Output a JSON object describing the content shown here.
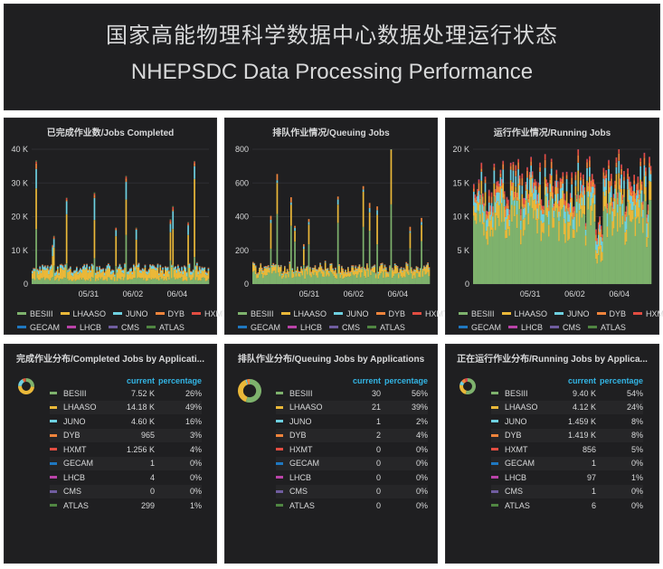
{
  "header": {
    "title_cn": "国家高能物理科学数据中心数据处理运行状态",
    "title_en": "NHEPSDC Data Processing Performance"
  },
  "series_colors": {
    "BESIII": "#7eb26d",
    "LHAASO": "#eab839",
    "JUNO": "#6ed0e0",
    "DYB": "#ef843c",
    "HXMT": "#e24d42",
    "GECAM": "#1f78c1",
    "LHCB": "#ba43a9",
    "CMS": "#705da0",
    "ATLAS": "#508642"
  },
  "legend_rows": [
    [
      "BESIII",
      "LHAASO",
      "JUNO",
      "DYB",
      "HXMT"
    ],
    [
      "GECAM",
      "LHCB",
      "CMS",
      "ATLAS"
    ]
  ],
  "chart_data": [
    {
      "type": "bar",
      "title": "已完成作业数/Jobs Completed",
      "y_ticks": [
        "40 K",
        "30 K",
        "20 K",
        "10 K",
        "0"
      ],
      "x_ticks": [
        "05/31",
        "06/02",
        "06/04"
      ],
      "ylim": [
        0,
        40000
      ],
      "stacked": true,
      "series_names": [
        "BESIII",
        "LHAASO",
        "JUNO",
        "DYB",
        "HXMT",
        "GECAM",
        "LHCB",
        "CMS",
        "ATLAS"
      ],
      "level": [
        1500,
        2400,
        800,
        150,
        100,
        0,
        0,
        0,
        50
      ]
    },
    {
      "type": "bar",
      "title": "排队作业情况/Queuing Jobs",
      "y_ticks": [
        "800",
        "600",
        "400",
        "200",
        "0"
      ],
      "x_ticks": [
        "05/31",
        "06/02",
        "06/04"
      ],
      "ylim": [
        0,
        800
      ],
      "stacked": true,
      "series_names": [
        "BESIII",
        "LHAASO",
        "JUNO",
        "DYB",
        "HXMT",
        "GECAM",
        "LHCB",
        "CMS",
        "ATLAS"
      ],
      "level": [
        55,
        35,
        5,
        5,
        0,
        0,
        0,
        0,
        0
      ]
    },
    {
      "type": "bar",
      "title": "运行作业情况/Running Jobs",
      "y_ticks": [
        "20 K",
        "15 K",
        "10 K",
        "5 K",
        "0"
      ],
      "x_ticks": [
        "05/31",
        "06/02",
        "06/04"
      ],
      "ylim": [
        0,
        20000
      ],
      "stacked": true,
      "series_names": [
        "BESIII",
        "LHAASO",
        "JUNO",
        "DYB",
        "HXMT",
        "GECAM",
        "LHCB",
        "CMS",
        "ATLAS"
      ],
      "level": [
        9800,
        2200,
        1500,
        800,
        600,
        0,
        60,
        0,
        10
      ]
    },
    {
      "type": "pie",
      "title": "完成作业分布/Completed Jobs by Applicati...",
      "col_current": "current",
      "col_percentage": "percentage",
      "rows": [
        {
          "name": "BESIII",
          "current": "7.52 K",
          "pct": "26%",
          "value": 26
        },
        {
          "name": "LHAASO",
          "current": "14.18 K",
          "pct": "49%",
          "value": 49
        },
        {
          "name": "JUNO",
          "current": "4.60 K",
          "pct": "16%",
          "value": 16
        },
        {
          "name": "DYB",
          "current": "965",
          "pct": "3%",
          "value": 3
        },
        {
          "name": "HXMT",
          "current": "1.256 K",
          "pct": "4%",
          "value": 4
        },
        {
          "name": "GECAM",
          "current": "1",
          "pct": "0%",
          "value": 0
        },
        {
          "name": "LHCB",
          "current": "4",
          "pct": "0%",
          "value": 0
        },
        {
          "name": "CMS",
          "current": "0",
          "pct": "0%",
          "value": 0
        },
        {
          "name": "ATLAS",
          "current": "299",
          "pct": "1%",
          "value": 1
        }
      ]
    },
    {
      "type": "pie",
      "title": "排队作业分布/Queuing Jobs by Applications",
      "col_current": "current",
      "col_percentage": "percentage",
      "rows": [
        {
          "name": "BESIII",
          "current": "30",
          "pct": "56%",
          "value": 56
        },
        {
          "name": "LHAASO",
          "current": "21",
          "pct": "39%",
          "value": 39
        },
        {
          "name": "JUNO",
          "current": "1",
          "pct": "2%",
          "value": 2
        },
        {
          "name": "DYB",
          "current": "2",
          "pct": "4%",
          "value": 4
        },
        {
          "name": "HXMT",
          "current": "0",
          "pct": "0%",
          "value": 0
        },
        {
          "name": "GECAM",
          "current": "0",
          "pct": "0%",
          "value": 0
        },
        {
          "name": "LHCB",
          "current": "0",
          "pct": "0%",
          "value": 0
        },
        {
          "name": "CMS",
          "current": "0",
          "pct": "0%",
          "value": 0
        },
        {
          "name": "ATLAS",
          "current": "0",
          "pct": "0%",
          "value": 0
        }
      ]
    },
    {
      "type": "pie",
      "title": "正在运行作业分布/Running Jobs by Applica...",
      "col_current": "current",
      "col_percentage": "percentage",
      "rows": [
        {
          "name": "BESIII",
          "current": "9.40 K",
          "pct": "54%",
          "value": 54
        },
        {
          "name": "LHAASO",
          "current": "4.12 K",
          "pct": "24%",
          "value": 24
        },
        {
          "name": "JUNO",
          "current": "1.459 K",
          "pct": "8%",
          "value": 8
        },
        {
          "name": "DYB",
          "current": "1.419 K",
          "pct": "8%",
          "value": 8
        },
        {
          "name": "HXMT",
          "current": "856",
          "pct": "5%",
          "value": 5
        },
        {
          "name": "GECAM",
          "current": "1",
          "pct": "0%",
          "value": 0
        },
        {
          "name": "LHCB",
          "current": "97",
          "pct": "1%",
          "value": 1
        },
        {
          "name": "CMS",
          "current": "1",
          "pct": "0%",
          "value": 0
        },
        {
          "name": "ATLAS",
          "current": "6",
          "pct": "0%",
          "value": 0
        }
      ]
    }
  ]
}
